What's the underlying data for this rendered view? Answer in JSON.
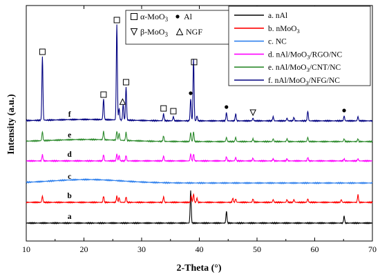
{
  "chart_data": {
    "type": "line",
    "xlabel": "2-Theta (°)",
    "ylabel": "Intensity (a.u.)",
    "xlim": [
      10,
      70
    ],
    "xticks": [
      10,
      20,
      30,
      40,
      50,
      60,
      70
    ],
    "grid": false,
    "legend_position": "top-right",
    "series": [
      {
        "key": "a",
        "name": "a. nAl",
        "label": "a",
        "color": "#000000",
        "offset": 0,
        "baseline": 0,
        "broad": 0,
        "peaks": [
          [
            38.5,
            47
          ],
          [
            44.7,
            17
          ],
          [
            65.1,
            10
          ]
        ]
      },
      {
        "key": "b",
        "name": "b. nMoO",
        "name_sub": "3",
        "label": "b",
        "color": "#ff0000",
        "offset": 30,
        "baseline": 0,
        "broad": 0,
        "peaks": [
          [
            12.8,
            9
          ],
          [
            23.4,
            9
          ],
          [
            25.7,
            9
          ],
          [
            26.1,
            7
          ],
          [
            27.3,
            8
          ],
          [
            33.8,
            8
          ],
          [
            38.6,
            9
          ],
          [
            39.0,
            12
          ],
          [
            39.6,
            6
          ],
          [
            45.8,
            6
          ],
          [
            46.3,
            5
          ],
          [
            49.3,
            5
          ],
          [
            52.8,
            4
          ],
          [
            55.2,
            4
          ],
          [
            56.4,
            4
          ],
          [
            58.8,
            5
          ],
          [
            64.6,
            4
          ],
          [
            67.5,
            11
          ]
        ]
      },
      {
        "key": "c",
        "name": "c. NC",
        "label": "c",
        "color": "#2f80ed",
        "offset": 58,
        "baseline": 0,
        "broad": 5,
        "peaks": []
      },
      {
        "key": "d",
        "name": "d. nAl/MoO",
        "name_sub": "3",
        "name_tail": "/RGO/NC",
        "label": "d",
        "color": "#ff00ff",
        "offset": 90,
        "baseline": 0,
        "broad": 0,
        "peaks": [
          [
            12.8,
            9
          ],
          [
            23.4,
            9
          ],
          [
            25.7,
            10
          ],
          [
            26.1,
            8
          ],
          [
            27.3,
            8
          ],
          [
            33.8,
            7
          ],
          [
            38.5,
            10
          ],
          [
            39.0,
            10
          ],
          [
            44.7,
            6
          ],
          [
            46.3,
            5
          ],
          [
            49.3,
            4
          ],
          [
            52.8,
            3
          ],
          [
            55.2,
            3
          ],
          [
            58.8,
            5
          ],
          [
            65.1,
            3
          ],
          [
            67.5,
            3
          ]
        ]
      },
      {
        "key": "e",
        "name": "e. nAl/MoO",
        "name_sub": "3",
        "name_tail": "/CNT/NC",
        "label": "e",
        "color": "#2e8b2e",
        "offset": 118,
        "baseline": 0,
        "broad": 3,
        "peaks": [
          [
            12.8,
            13
          ],
          [
            23.4,
            12
          ],
          [
            25.7,
            13
          ],
          [
            26.1,
            10
          ],
          [
            27.3,
            12
          ],
          [
            33.8,
            8
          ],
          [
            38.5,
            13
          ],
          [
            39.0,
            14
          ],
          [
            44.7,
            6
          ],
          [
            46.3,
            6
          ],
          [
            49.3,
            4
          ],
          [
            52.8,
            4
          ],
          [
            55.2,
            4
          ],
          [
            58.8,
            6
          ],
          [
            65.1,
            4
          ],
          [
            67.5,
            4
          ]
        ]
      },
      {
        "key": "f",
        "name": "f. nAl/MoO",
        "name_sub": "3",
        "name_tail": "/NFG/NC",
        "label": "f",
        "color": "#000080",
        "offset": 148,
        "baseline": 0,
        "broad": 2,
        "peaks": [
          [
            12.8,
            92
          ],
          [
            23.4,
            30
          ],
          [
            25.7,
            138
          ],
          [
            26.1,
            17
          ],
          [
            26.8,
            23
          ],
          [
            27.3,
            48
          ],
          [
            33.8,
            10
          ],
          [
            35.5,
            6
          ],
          [
            38.5,
            32
          ],
          [
            39.0,
            90
          ],
          [
            39.6,
            7
          ],
          [
            44.7,
            12
          ],
          [
            46.3,
            10
          ],
          [
            49.3,
            4
          ],
          [
            52.8,
            6
          ],
          [
            55.2,
            4
          ],
          [
            56.4,
            5
          ],
          [
            58.8,
            14
          ],
          [
            65.1,
            7
          ],
          [
            67.5,
            6
          ]
        ]
      }
    ],
    "annotations": [
      {
        "marker": "square",
        "x": 12.8
      },
      {
        "marker": "square",
        "x": 23.4
      },
      {
        "marker": "square",
        "x": 25.7
      },
      {
        "marker": "square",
        "x": 27.3
      },
      {
        "marker": "triangle-up",
        "x": 26.7
      },
      {
        "marker": "square",
        "x": 33.8
      },
      {
        "marker": "square",
        "x": 35.5
      },
      {
        "marker": "dot",
        "x": 38.5
      },
      {
        "marker": "square",
        "x": 39.1
      },
      {
        "marker": "dot",
        "x": 44.7
      },
      {
        "marker": "triangle-down",
        "x": 49.3
      },
      {
        "marker": "dot",
        "x": 65.1
      }
    ],
    "phase_legend": [
      {
        "marker": "square",
        "text": "α-MoO",
        "sub": "3"
      },
      {
        "marker": "dot",
        "text": "Al"
      },
      {
        "marker": "triangle-down",
        "text": "β-MoO",
        "sub": "3"
      },
      {
        "marker": "triangle-up",
        "text": "NGF"
      }
    ]
  }
}
